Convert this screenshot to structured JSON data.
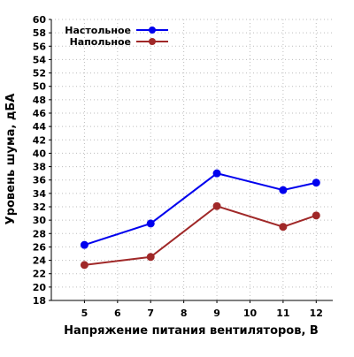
{
  "chart_data": {
    "type": "line",
    "title": "",
    "xlabel": "Напряжение питания вентиляторов, В",
    "ylabel": "Уровень шума, дБА",
    "xlim": [
      4,
      12.5
    ],
    "ylim": [
      18,
      60
    ],
    "x_ticks": [
      5,
      6,
      7,
      8,
      9,
      10,
      11,
      12
    ],
    "y_ticks": [
      18,
      20,
      22,
      24,
      26,
      28,
      30,
      32,
      34,
      36,
      38,
      40,
      42,
      44,
      46,
      48,
      50,
      52,
      54,
      56,
      58,
      60
    ],
    "grid": true,
    "legend_position": "top-left",
    "series": [
      {
        "name": "Настольное",
        "color": "#0000ee",
        "x": [
          5,
          7,
          9,
          11,
          12
        ],
        "y": [
          26.3,
          29.5,
          37.0,
          34.5,
          35.6
        ]
      },
      {
        "name": "Напольное",
        "color": "#a02828",
        "x": [
          5,
          7,
          9,
          11,
          12
        ],
        "y": [
          23.3,
          24.5,
          32.1,
          29.0,
          30.7
        ]
      }
    ]
  }
}
